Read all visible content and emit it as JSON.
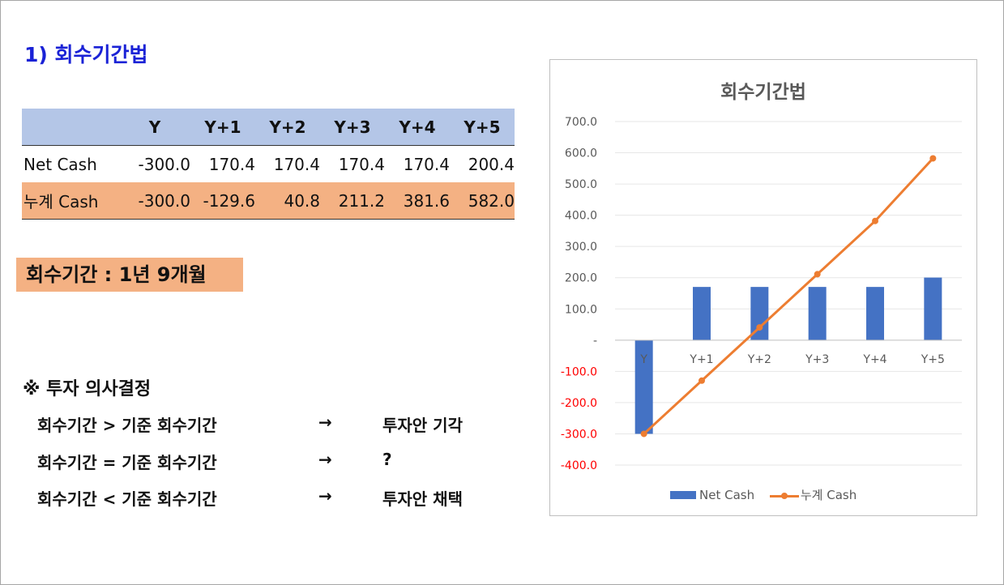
{
  "section_title": "1) 회수기간법",
  "table": {
    "headers": [
      "",
      "Y",
      "Y+1",
      "Y+2",
      "Y+3",
      "Y+4",
      "Y+5"
    ],
    "rows": [
      {
        "label": "Net Cash",
        "values": [
          "-300.0",
          "170.4",
          "170.4",
          "170.4",
          "170.4",
          "200.4"
        ]
      },
      {
        "label": "누계 Cash",
        "values": [
          "-300.0",
          "-129.6",
          "40.8",
          "211.2",
          "381.6",
          "582.0"
        ]
      }
    ]
  },
  "payback_label": "회수기간 : 1년 9개월",
  "decision": {
    "title": "※ 투자 의사결정",
    "rules": [
      {
        "condition": "회수기간 > 기준 회수기간",
        "arrow": "→",
        "result": "투자안 기각"
      },
      {
        "condition": "회수기간 = 기준 회수기간",
        "arrow": "→",
        "result": "?"
      },
      {
        "condition": "회수기간 < 기준 회수기간",
        "arrow": "→",
        "result": "투자안 채택"
      }
    ]
  },
  "chart_data": {
    "type": "bar",
    "title": "회수기간법",
    "categories": [
      "Y",
      "Y+1",
      "Y+2",
      "Y+3",
      "Y+4",
      "Y+5"
    ],
    "series": [
      {
        "name": "Net Cash",
        "type": "bar",
        "color": "#4472c4",
        "values": [
          -300.0,
          170.4,
          170.4,
          170.4,
          170.4,
          200.4
        ]
      },
      {
        "name": "누계 Cash",
        "type": "line",
        "color": "#ed7d31",
        "values": [
          -300.0,
          -129.6,
          40.8,
          211.2,
          381.6,
          582.0
        ]
      }
    ],
    "ylim": [
      -400,
      700
    ],
    "yticks": [
      700,
      600,
      500,
      400,
      300,
      200,
      100,
      0,
      -100,
      -200,
      -300,
      -400
    ],
    "ytick_labels": [
      "700.0",
      "600.0",
      "500.0",
      "400.0",
      "300.0",
      "200.0",
      "100.0",
      "-",
      "-100.0",
      "-200.0",
      "-300.0",
      "-400.0"
    ],
    "negative_tick_color": "#ff0000",
    "grid": true,
    "legend_position": "bottom"
  }
}
